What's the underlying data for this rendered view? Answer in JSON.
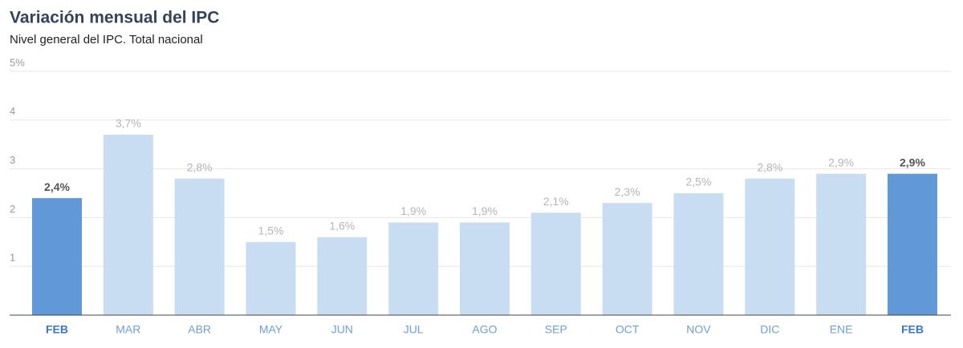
{
  "chart_data": {
    "type": "bar",
    "title": "Variación mensual del IPC",
    "subtitle": "Nivel general del IPC. Total nacional",
    "categories": [
      "FEB",
      "MAR",
      "ABR",
      "MAY",
      "JUN",
      "JUL",
      "AGO",
      "SEP",
      "OCT",
      "NOV",
      "DIC",
      "ENE",
      "FEB"
    ],
    "values": [
      2.4,
      3.7,
      2.8,
      1.5,
      1.6,
      1.9,
      1.9,
      2.1,
      2.3,
      2.5,
      2.8,
      2.9,
      2.9
    ],
    "value_labels": [
      "2,4%",
      "3,7%",
      "2,8%",
      "1,5%",
      "1,6%",
      "1,9%",
      "1,9%",
      "2,1%",
      "2,3%",
      "2,5%",
      "2,8%",
      "2,9%",
      "2,9%"
    ],
    "colors": [
      "#6198d8",
      "#c9ddf2",
      "#c9ddf2",
      "#c9ddf2",
      "#c9ddf2",
      "#c9ddf2",
      "#c9ddf2",
      "#c9ddf2",
      "#c9ddf2",
      "#c9ddf2",
      "#c9ddf2",
      "#c9ddf2",
      "#6198d8"
    ],
    "highlight_color": "#6198d8",
    "ylim": [
      0,
      5
    ],
    "yticks": [
      1,
      2,
      3,
      4,
      {
        "value": 5,
        "label": "5%"
      }
    ],
    "grid": true
  }
}
